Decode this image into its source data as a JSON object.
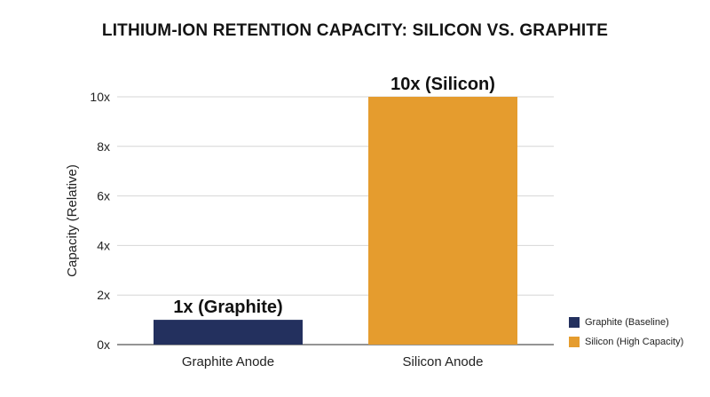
{
  "chart_data": {
    "type": "bar",
    "title": "LITHIUM-ION RETENTION CAPACITY: SILICON VS. GRAPHITE",
    "xlabel": "",
    "ylabel": "Capacity (Relative)",
    "categories": [
      "Graphite Anode",
      "Silicon Anode"
    ],
    "values": [
      1,
      10
    ],
    "data_labels": [
      "1x (Graphite)",
      "10x (Silicon)"
    ],
    "colors": [
      "#23305e",
      "#e59c2e"
    ],
    "ylim": [
      0,
      10
    ],
    "yticks": [
      0,
      2,
      4,
      6,
      8,
      10
    ],
    "ytick_labels": [
      "0x",
      "2x",
      "4x",
      "6x",
      "8x",
      "10x"
    ],
    "grid": true,
    "legend_position": "bottom-right",
    "legend": [
      {
        "label": "Graphite (Baseline)",
        "color": "#23305e"
      },
      {
        "label": "Silicon (High Capacity)",
        "color": "#e59c2e"
      }
    ]
  }
}
